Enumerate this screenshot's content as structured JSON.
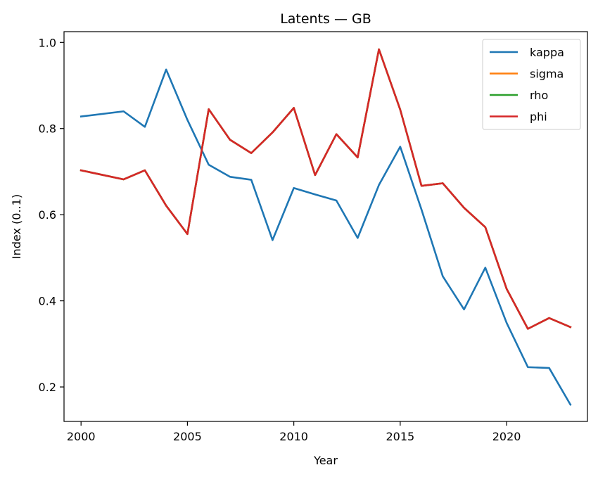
{
  "chart_data": {
    "type": "line",
    "title": "Latents — GB",
    "xlabel": "Year",
    "ylabel": "Index (0..1)",
    "xlim": [
      1999.2,
      2023.8
    ],
    "ylim": [
      0.12,
      1.025
    ],
    "xticks": [
      2000,
      2005,
      2010,
      2015,
      2020
    ],
    "yticks": [
      0.2,
      0.4,
      0.6,
      0.8,
      1.0
    ],
    "legend_position": "top-right",
    "x": [
      2000,
      2002,
      2003,
      2004,
      2005,
      2006,
      2007,
      2008,
      2009,
      2010,
      2011,
      2012,
      2013,
      2014,
      2015,
      2016,
      2017,
      2018,
      2019,
      2020,
      2021,
      2022,
      2023
    ],
    "series": [
      {
        "name": "kappa",
        "color": "#1f77b4",
        "values": [
          0.828,
          0.84,
          0.804,
          0.937,
          0.82,
          0.716,
          0.688,
          0.681,
          0.541,
          0.662,
          0.647,
          0.633,
          0.546,
          0.669,
          0.758,
          0.612,
          0.457,
          0.38,
          0.477,
          0.349,
          0.246,
          0.244,
          0.159
        ]
      },
      {
        "name": "sigma",
        "color": "#ff7f0e",
        "values": [
          0.703,
          0.682,
          0.703,
          0.621,
          0.555,
          0.845,
          0.774,
          0.743,
          0.791,
          0.848,
          0.692,
          0.787,
          0.733,
          0.984,
          0.844,
          0.667,
          0.673,
          0.616,
          0.571,
          0.428,
          0.335,
          0.36,
          0.339
        ]
      },
      {
        "name": "rho",
        "color": "#2ca02c",
        "values": [
          0.703,
          0.682,
          0.703,
          0.621,
          0.555,
          0.845,
          0.774,
          0.743,
          0.791,
          0.848,
          0.692,
          0.787,
          0.733,
          0.984,
          0.844,
          0.667,
          0.673,
          0.616,
          0.571,
          0.428,
          0.335,
          0.36,
          0.339
        ]
      },
      {
        "name": "phi",
        "color": "#d62728",
        "values": [
          0.703,
          0.682,
          0.703,
          0.621,
          0.555,
          0.845,
          0.774,
          0.743,
          0.791,
          0.848,
          0.692,
          0.787,
          0.733,
          0.984,
          0.844,
          0.667,
          0.673,
          0.616,
          0.571,
          0.428,
          0.335,
          0.36,
          0.339
        ]
      }
    ]
  }
}
